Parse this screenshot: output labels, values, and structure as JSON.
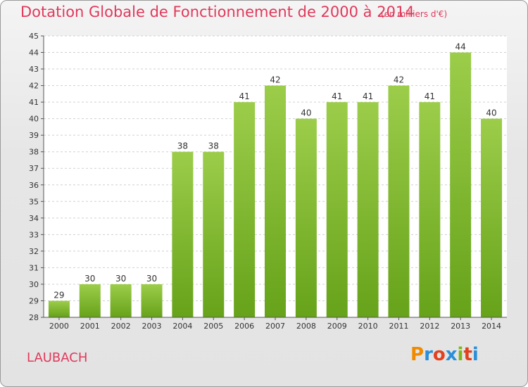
{
  "title": "Dotation Globale de Fonctionnement de 2000 à 2014",
  "subtitle": "(en milliers d'€)",
  "commune": "LAUBACH",
  "logo": {
    "text": "Proxiti",
    "colors": [
      "#f08a00",
      "#2a8fd8",
      "#e2401f",
      "#2a8fd8",
      "#7cb518",
      "#e2401f",
      "#2a8fd8"
    ]
  },
  "colors": {
    "title": "#e0395b",
    "bar_light": "#9ccd4a",
    "bar_dark": "#66a21a"
  },
  "chart_data": {
    "type": "bar",
    "categories": [
      "2000",
      "2001",
      "2002",
      "2003",
      "2004",
      "2005",
      "2006",
      "2007",
      "2008",
      "2009",
      "2010",
      "2011",
      "2012",
      "2013",
      "2014"
    ],
    "values": [
      29,
      30,
      30,
      30,
      38,
      38,
      41,
      42,
      40,
      41,
      41,
      42,
      41,
      44,
      40
    ],
    "ylim": [
      28,
      45
    ],
    "yticks": [
      28,
      29,
      30,
      31,
      32,
      33,
      34,
      35,
      36,
      37,
      38,
      39,
      40,
      41,
      42,
      43,
      44,
      45
    ],
    "grid": true,
    "xlabel": "",
    "ylabel": ""
  }
}
